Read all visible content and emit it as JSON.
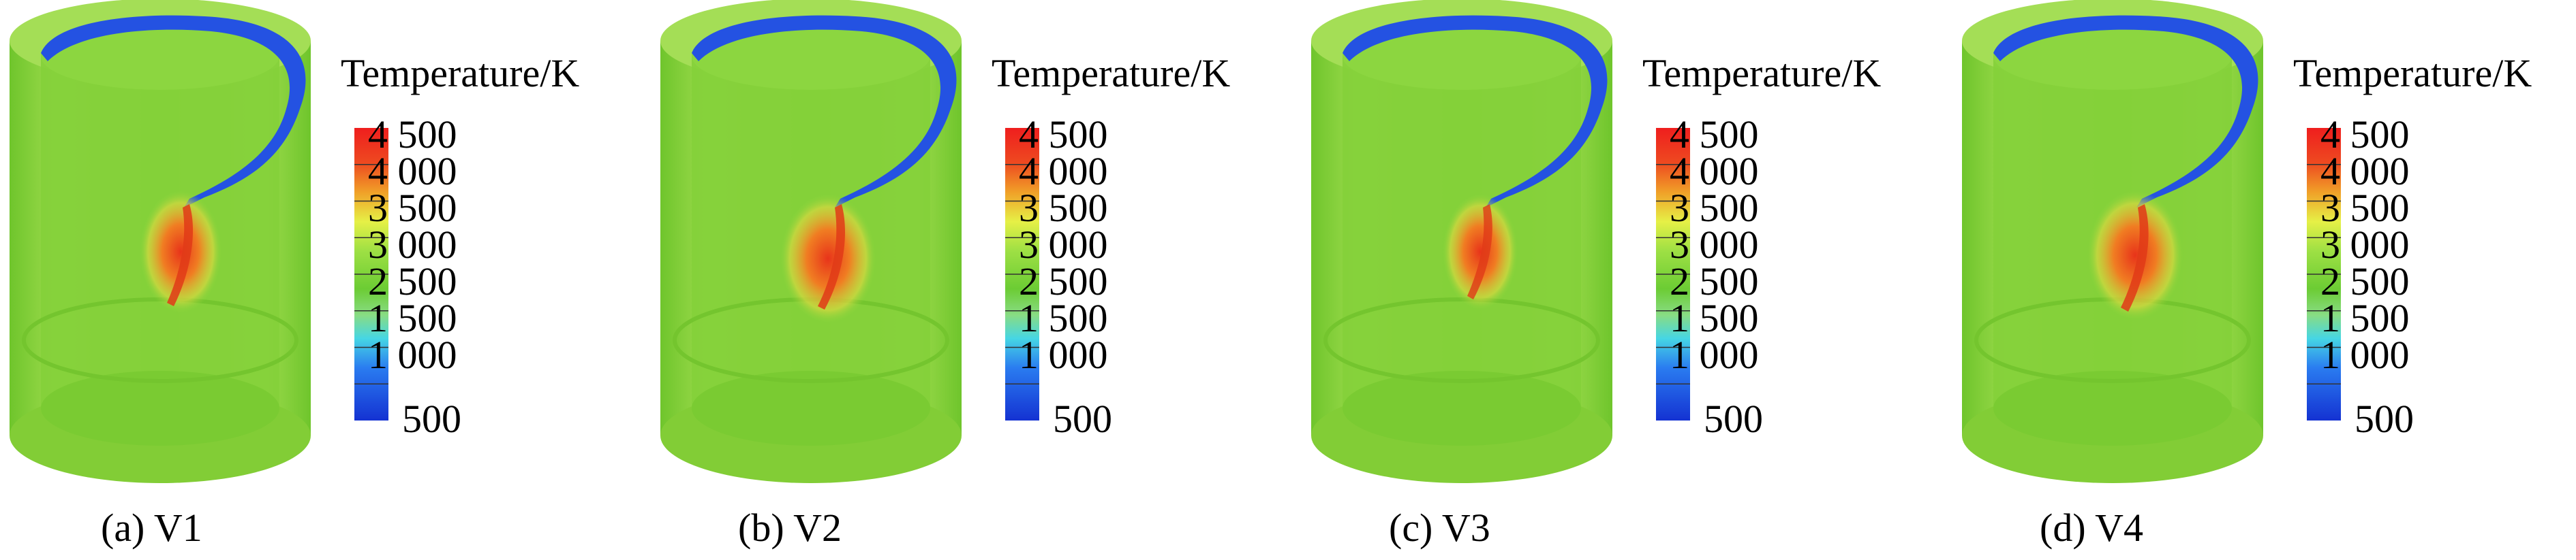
{
  "colorbar": {
    "title": "Temperature/K",
    "ticks": [
      "4 500",
      "4 000",
      "3 500",
      "3 000",
      "2 500",
      "1 500",
      "1 000",
      "500"
    ],
    "range": [
      500,
      4500
    ],
    "colors": [
      "#1a3cdc",
      "#2a7cf0",
      "#40d8e0",
      "#8ae06a",
      "#7fd640",
      "#6ed030",
      "#a8e040",
      "#e8f040",
      "#f0c030",
      "#f08020",
      "#ee3020",
      "#f02020"
    ]
  },
  "panels": [
    {
      "caption": "(a) V1"
    },
    {
      "caption": "(b) V2"
    },
    {
      "caption": "(c) V3"
    },
    {
      "caption": "(d) V4"
    }
  ],
  "colors": {
    "shell": "#8fd63e",
    "shell_dark": "#6cbe2a",
    "cold_band": "#2250e0",
    "hot_core": "#e83a18",
    "warm": "#f0a020"
  }
}
